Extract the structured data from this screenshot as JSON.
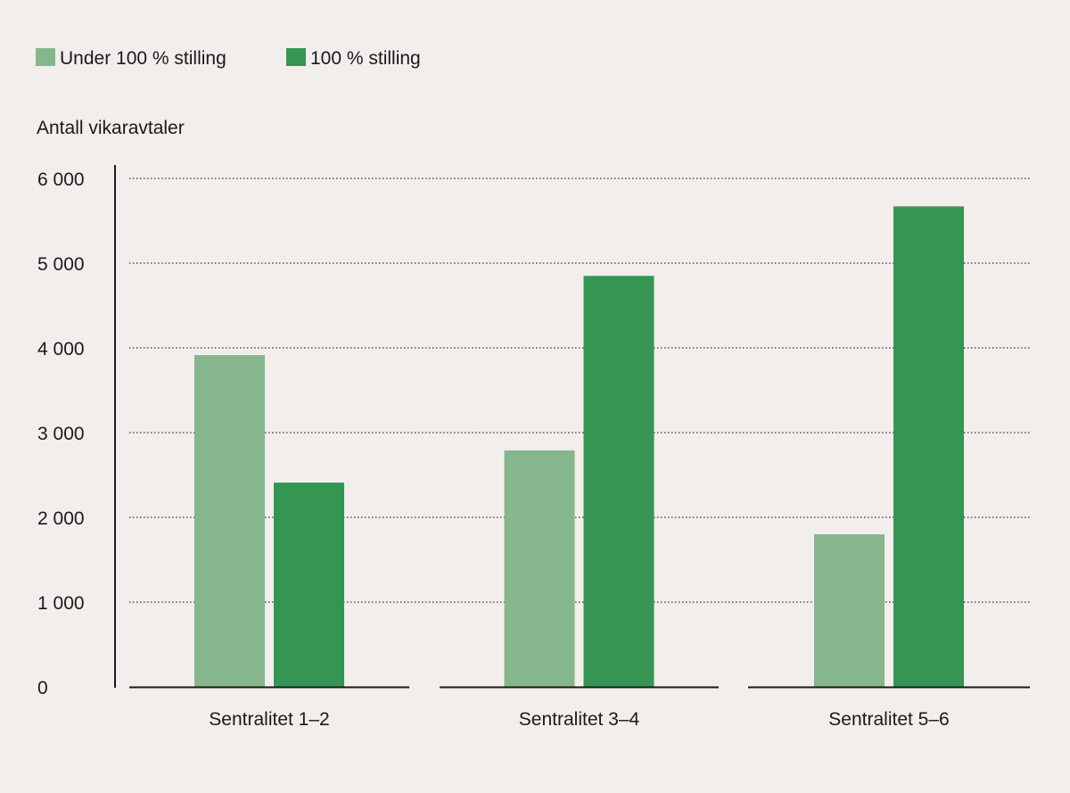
{
  "chart_data": {
    "type": "bar",
    "title": "",
    "ylabel": "Antall vikaravtaler",
    "xlabel": "",
    "categories": [
      "Sentralitet 1–2",
      "Sentralitet 3–4",
      "Sentralitet 5–6"
    ],
    "series": [
      {
        "name": "Under 100 % stilling",
        "color": "#85b68c",
        "values": [
          3915,
          2790,
          1800
        ]
      },
      {
        "name": "100 % stilling",
        "color": "#359653",
        "values": [
          2410,
          4850,
          5670
        ]
      }
    ],
    "ylim": [
      0,
      6000
    ],
    "yticks": [
      0,
      1000,
      2000,
      3000,
      4000,
      5000,
      6000
    ],
    "ytick_labels": [
      "0",
      "1 000",
      "2 000",
      "3 000",
      "4 000",
      "5 000",
      "6 000"
    ],
    "grid": true,
    "legend": "top-left"
  }
}
